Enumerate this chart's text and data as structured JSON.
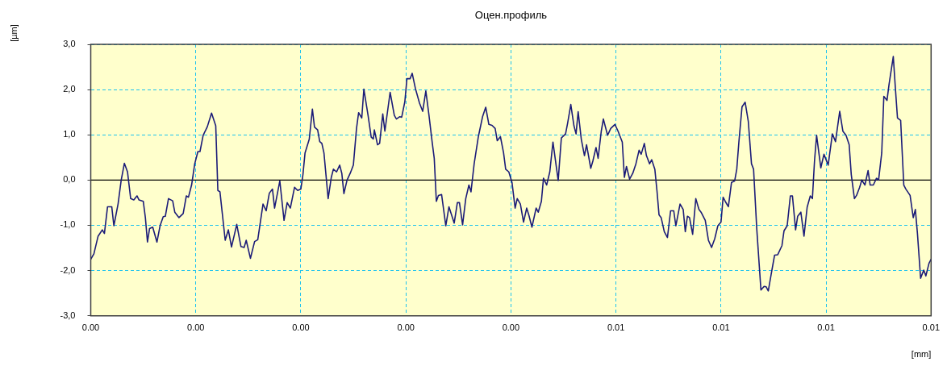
{
  "chart_data": {
    "type": "line",
    "title": "Оцен.профиль",
    "xlabel": "[mm]",
    "ylabel": "[µm]",
    "x": [
      0,
      3e-05,
      7e-05,
      0.00011,
      0.00013,
      0.00016,
      0.0002,
      0.00022,
      0.00026,
      0.00029,
      0.00032,
      0.00035,
      0.00038,
      0.00041,
      0.00044,
      0.00046,
      0.0005,
      0.00052,
      0.00054,
      0.00056,
      0.00059,
      0.00063,
      0.00066,
      0.00069,
      0.00071,
      0.00074,
      0.00078,
      0.0008,
      0.00084,
      0.00088,
      0.00091,
      0.00093,
      0.00096,
      0.00099,
      0.00102,
      0.00104,
      0.00107,
      0.00111,
      0.00115,
      0.00119,
      0.00121,
      0.00123,
      0.00128,
      0.00131,
      0.00134,
      0.00137,
      0.00139,
      0.00143,
      0.00146,
      0.00148,
      0.00152,
      0.00156,
      0.00159,
      0.00164,
      0.00167,
      0.0017,
      0.00173,
      0.00175,
      0.0018,
      0.00184,
      0.00187,
      0.0019,
      0.00194,
      0.00197,
      0.002,
      0.00202,
      0.00204,
      0.00208,
      0.00211,
      0.00213,
      0.00216,
      0.00218,
      0.0022,
      0.00222,
      0.00226,
      0.00229,
      0.00231,
      0.00234,
      0.00237,
      0.00239,
      0.00241,
      0.00244,
      0.00247,
      0.0025,
      0.00253,
      0.00255,
      0.00258,
      0.0026,
      0.00264,
      0.00267,
      0.00269,
      0.0027,
      0.00273,
      0.00275,
      0.00278,
      0.0028,
      0.00285,
      0.00289,
      0.00291,
      0.00294,
      0.00296,
      0.00299,
      0.00301,
      0.00304,
      0.00306,
      0.00309,
      0.00313,
      0.00316,
      0.00319,
      0.00322,
      0.00325,
      0.00327,
      0.00329,
      0.00331,
      0.00334,
      0.00338,
      0.00341,
      0.00346,
      0.00349,
      0.00351,
      0.00354,
      0.00357,
      0.0036,
      0.00362,
      0.00365,
      0.00369,
      0.00373,
      0.00376,
      0.00379,
      0.00382,
      0.00385,
      0.00387,
      0.0039,
      0.00393,
      0.00395,
      0.00398,
      0.00401,
      0.00404,
      0.00406,
      0.00409,
      0.00412,
      0.00415,
      0.00417,
      0.0042,
      0.00424,
      0.00426,
      0.00429,
      0.00431,
      0.00434,
      0.00437,
      0.0044,
      0.00443,
      0.00445,
      0.00448,
      0.00452,
      0.00454,
      0.00457,
      0.0046,
      0.00462,
      0.00464,
      0.00467,
      0.0047,
      0.00472,
      0.00476,
      0.00478,
      0.00481,
      0.00483,
      0.00486,
      0.00488,
      0.00492,
      0.00495,
      0.00499,
      0.00502,
      0.00506,
      0.00508,
      0.0051,
      0.00513,
      0.00516,
      0.00519,
      0.00522,
      0.00524,
      0.00527,
      0.00529,
      0.00532,
      0.00534,
      0.00537,
      0.00539,
      0.00541,
      0.00543,
      0.00546,
      0.00549,
      0.00552,
      0.00555,
      0.00557,
      0.00561,
      0.00564,
      0.00566,
      0.00568,
      0.0057,
      0.00573,
      0.00576,
      0.00579,
      0.00581,
      0.00585,
      0.00588,
      0.00591,
      0.00594,
      0.00597,
      0.006,
      0.00602,
      0.00604,
      0.00607,
      0.0061,
      0.00613,
      0.00615,
      0.00617,
      0.0062,
      0.00623,
      0.00626,
      0.00629,
      0.00631,
      0.00634,
      0.00638,
      0.00641,
      0.00643,
      0.00645,
      0.00648,
      0.00651,
      0.00654,
      0.00658,
      0.0066,
      0.00663,
      0.00666,
      0.00668,
      0.00671,
      0.00673,
      0.00676,
      0.00679,
      0.00682,
      0.00685,
      0.00687,
      0.00689,
      0.00691,
      0.00695,
      0.00698,
      0.00702,
      0.00706,
      0.00709,
      0.00713,
      0.00716,
      0.00719,
      0.00722,
      0.00724,
      0.00727,
      0.00729,
      0.00732,
      0.00734,
      0.00737,
      0.0074,
      0.00742,
      0.00745,
      0.00748,
      0.0075,
      0.00753,
      0.00755,
      0.00758,
      0.0076,
      0.00764,
      0.00766,
      0.00768,
      0.00771,
      0.00774,
      0.00776,
      0.0078,
      0.00783,
      0.00785,
      0.00787,
      0.0079,
      0.00793,
      0.00795,
      0.00798,
      0.008
    ],
    "values": [
      -1.75,
      -1.63,
      -1.24,
      -1.1,
      -1.18,
      -0.59,
      -0.59,
      -1.01,
      -0.53,
      0.0,
      0.37,
      0.18,
      -0.41,
      -0.44,
      -0.35,
      -0.44,
      -0.47,
      -0.83,
      -1.37,
      -1.07,
      -1.04,
      -1.37,
      -1.01,
      -0.81,
      -0.8,
      -0.41,
      -0.46,
      -0.71,
      -0.83,
      -0.74,
      -0.35,
      -0.38,
      -0.11,
      0.36,
      0.63,
      0.63,
      0.99,
      1.18,
      1.48,
      1.2,
      -0.23,
      -0.26,
      -1.33,
      -1.1,
      -1.48,
      -1.18,
      -0.98,
      -1.47,
      -1.49,
      -1.33,
      -1.73,
      -1.36,
      -1.32,
      -0.53,
      -0.68,
      -0.29,
      -0.2,
      -0.62,
      -0.02,
      -0.89,
      -0.5,
      -0.62,
      -0.16,
      -0.23,
      -0.2,
      0.12,
      0.6,
      0.9,
      1.57,
      1.17,
      1.11,
      0.85,
      0.81,
      0.6,
      -0.41,
      0.06,
      0.24,
      0.18,
      0.33,
      0.15,
      -0.3,
      0.0,
      0.15,
      0.33,
      1.14,
      1.49,
      1.37,
      2.01,
      1.43,
      0.95,
      0.91,
      1.11,
      0.78,
      0.81,
      1.46,
      1.08,
      1.94,
      1.43,
      1.35,
      1.4,
      1.39,
      1.73,
      2.24,
      2.24,
      2.36,
      2.03,
      1.7,
      1.52,
      1.97,
      1.43,
      0.84,
      0.48,
      -0.47,
      -0.34,
      -0.32,
      -1.01,
      -0.59,
      -0.95,
      -0.5,
      -0.5,
      -0.99,
      -0.41,
      -0.11,
      -0.26,
      0.36,
      0.96,
      1.4,
      1.61,
      1.23,
      1.21,
      1.14,
      0.87,
      0.96,
      0.6,
      0.24,
      0.18,
      -0.05,
      -0.62,
      -0.41,
      -0.53,
      -0.93,
      -0.62,
      -0.77,
      -1.04,
      -0.62,
      -0.71,
      -0.47,
      0.04,
      -0.11,
      0.18,
      0.84,
      0.33,
      -0.01,
      0.93,
      1.02,
      1.26,
      1.67,
      1.2,
      1.02,
      1.51,
      0.9,
      0.54,
      0.78,
      0.26,
      0.42,
      0.72,
      0.48,
      1.08,
      1.35,
      0.99,
      1.14,
      1.23,
      1.08,
      0.84,
      0.06,
      0.3,
      0.02,
      0.15,
      0.36,
      0.66,
      0.57,
      0.81,
      0.54,
      0.36,
      0.45,
      0.24,
      -0.23,
      -0.77,
      -0.83,
      -1.14,
      -1.27,
      -0.68,
      -0.68,
      -1.01,
      -0.53,
      -0.65,
      -1.14,
      -0.8,
      -0.83,
      -1.2,
      -0.41,
      -0.65,
      -0.71,
      -0.89,
      -1.33,
      -1.49,
      -1.3,
      -1.01,
      -0.93,
      -0.38,
      -0.47,
      -0.59,
      -0.05,
      -0.02,
      0.24,
      0.84,
      1.62,
      1.72,
      1.29,
      0.36,
      0.24,
      -1.07,
      -2.43,
      -2.35,
      -2.36,
      -2.45,
      -2.05,
      -1.66,
      -1.65,
      -1.45,
      -1.12,
      -1.01,
      -0.35,
      -0.35,
      -1.1,
      -0.8,
      -0.71,
      -1.24,
      -0.6,
      -0.35,
      -0.41,
      0.42,
      0.99,
      0.27,
      0.57,
      0.33,
      1.02,
      0.85,
      1.52,
      1.08,
      0.99,
      0.78,
      0.12,
      -0.41,
      -0.34,
      -0.16,
      0.0,
      -0.11,
      0.21,
      -0.11,
      -0.11,
      0.04,
      0.0,
      0.6,
      1.85,
      1.76,
      2.12,
      2.73,
      2.03,
      1.37,
      1.32,
      -0.11,
      -0.2,
      -0.34,
      -0.83,
      -0.65,
      -1.18,
      -2.17,
      -1.99,
      -2.12,
      -1.84,
      -1.75
    ],
    "color": "#1c1c78",
    "xlim": [
      0,
      0.008
    ],
    "xticks": [
      {
        "value": 0,
        "label": "0.00"
      },
      {
        "value": 0.001,
        "label": "0.00"
      },
      {
        "value": 0.002,
        "label": "0.00"
      },
      {
        "value": 0.003,
        "label": "0.00"
      },
      {
        "value": 0.004,
        "label": "0.00"
      },
      {
        "value": 0.005,
        "label": "0.01"
      },
      {
        "value": 0.006,
        "label": "0.01"
      },
      {
        "value": 0.007,
        "label": "0.01"
      },
      {
        "value": 0.008,
        "label": "0.01"
      }
    ],
    "ylim": [
      -3,
      3
    ],
    "yticks": [
      {
        "value": -3,
        "label": "-3,0"
      },
      {
        "value": -2,
        "label": "-2,0"
      },
      {
        "value": -1,
        "label": "-1,0"
      },
      {
        "value": 0,
        "label": "0,0"
      },
      {
        "value": 1,
        "label": "1,0"
      },
      {
        "value": 2,
        "label": "2,0"
      },
      {
        "value": 3,
        "label": "3,0"
      }
    ],
    "grid": true,
    "ref_lines": [
      {
        "axis": "y",
        "value": 0,
        "color": "#000000"
      }
    ]
  }
}
